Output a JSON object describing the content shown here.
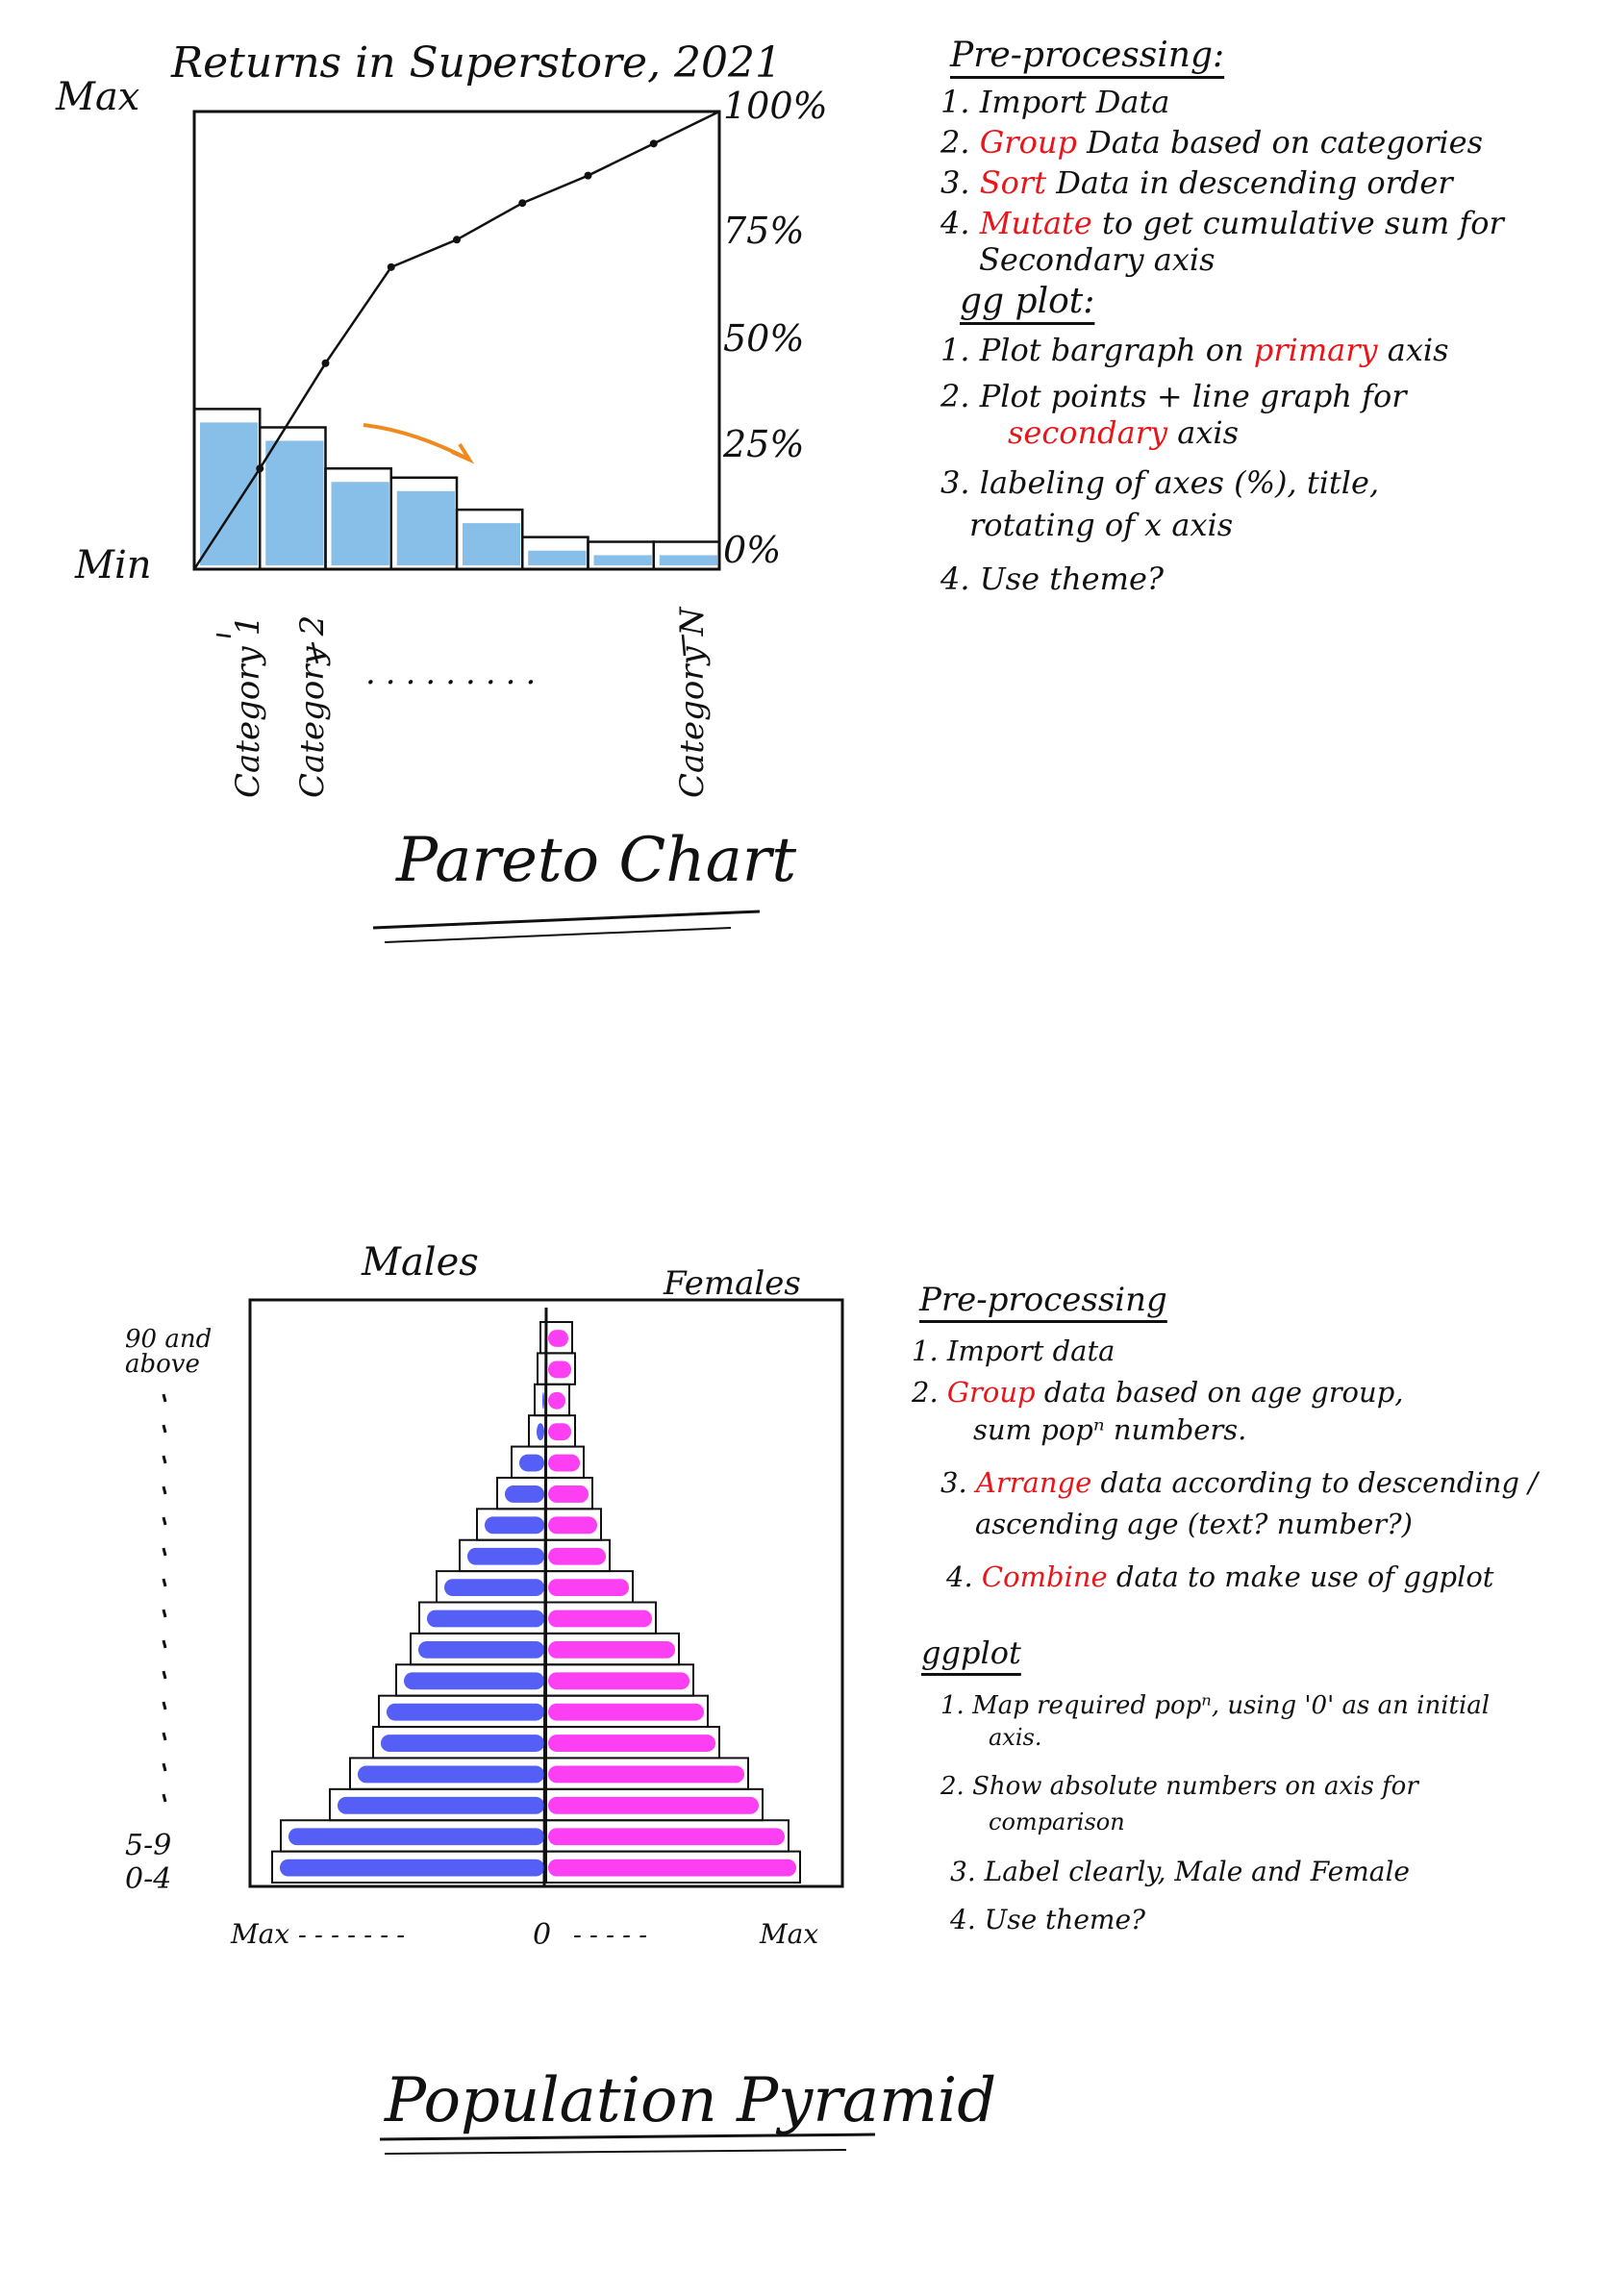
{
  "pareto": {
    "title": "Returns in Superstore, 2021",
    "y_max_label": "Max",
    "y_min_label": "Min",
    "pct_labels": [
      "100%",
      "75%",
      "50%",
      "25%",
      "0%"
    ],
    "category_labels": [
      "Category 1",
      "Category 2",
      "Category N"
    ],
    "ellipsis": "·········",
    "chart_name": "Pareto Chart"
  },
  "pareto_notes": {
    "preprocessing_heading": "Pre-processing:",
    "preprocessing": [
      {
        "num": "1.",
        "pre": "",
        "kw": "",
        "post": "Import Data"
      },
      {
        "num": "2.",
        "pre": "",
        "kw": "Group",
        "post": " Data based on categories"
      },
      {
        "num": "3.",
        "pre": "",
        "kw": "Sort",
        "post": " Data in descending order"
      },
      {
        "num": "4.",
        "pre": "",
        "kw": "Mutate",
        "post": " to get cumulative sum for"
      }
    ],
    "preprocessing_cont": "Secondary axis",
    "ggplot_heading": "gg plot:",
    "ggplot": [
      {
        "num": "1.",
        "pre": "Plot bargraph on ",
        "kw": "primary",
        "post": " axis"
      },
      {
        "num": "2.",
        "pre": "Plot points + line graph for",
        "kw": "",
        "post": ""
      }
    ],
    "ggplot_2_cont_kw": "secondary",
    "ggplot_2_cont_post": " axis",
    "ggplot_3": "3. labeling of axes (%), title,",
    "ggplot_3_cont": "rotating of x axis",
    "ggplot_4": "4. Use theme?"
  },
  "pyramid": {
    "male_label": "Males",
    "female_label": "Females",
    "top_age_label": "90 and above",
    "age_labels_bottom": [
      "5-9",
      "0-4"
    ],
    "x_labels": [
      "Max",
      "0",
      "Max"
    ],
    "x_dots_left": "- - - - - - -",
    "x_dots_right": "- - - - -",
    "chart_name": "Population Pyramid"
  },
  "pyramid_notes": {
    "preprocessing_heading": "Pre-processing",
    "items": [
      {
        "num": "1.",
        "kw": "",
        "post": "Import data"
      },
      {
        "num": "2.",
        "kw": "Group",
        "post": " data based on age group,"
      },
      {
        "num": "",
        "kw": "",
        "post": "sum popⁿ numbers."
      },
      {
        "num": "3.",
        "kw": "Arrange",
        "post": " data according to descending /"
      },
      {
        "num": "",
        "kw": "",
        "post": "ascending age (text? number?)"
      },
      {
        "num": "4.",
        "kw": "Combine",
        "post": " data to make use of ggplot"
      }
    ],
    "ggplot_heading": "ggplot",
    "ggplot": [
      "1. Map required popⁿ, using '0' as an initial",
      "axis.",
      "2. Show absolute numbers on axis for",
      "comparison",
      "3. Label clearly, Male and Female",
      "4. Use theme?"
    ]
  },
  "chart_data": [
    {
      "type": "bar",
      "title": "Returns in Superstore, 2021",
      "categories": [
        "Category 1",
        "Category 2",
        "",
        "",
        "",
        "",
        "",
        "Category N"
      ],
      "values": [
        0.35,
        0.31,
        0.22,
        0.2,
        0.13,
        0.07,
        0.06,
        0.06
      ],
      "cumulative_pct": [
        0,
        22,
        45,
        66,
        72,
        80,
        86,
        93,
        100
      ],
      "y_secondary_ticks": [
        "0%",
        "25%",
        "50%",
        "75%",
        "100%"
      ],
      "colors": {
        "bar": "#7ab8e6",
        "line": "#111111",
        "arrow": "#f08a1e"
      }
    },
    {
      "type": "bar",
      "title": "",
      "age_groups": 18,
      "males": [
        0.95,
        0.92,
        0.75,
        0.68,
        0.6,
        0.58,
        0.52,
        0.47,
        0.44,
        0.38,
        0.3,
        0.24,
        0.17,
        0.12,
        0.06,
        0.04,
        0.03,
        0.02
      ],
      "females": [
        0.88,
        0.84,
        0.75,
        0.7,
        0.6,
        0.56,
        0.51,
        0.46,
        0.38,
        0.3,
        0.22,
        0.19,
        0.16,
        0.13,
        0.1,
        0.08,
        0.1,
        0.09
      ],
      "colors": {
        "male": "#2a37f2",
        "female": "#fb0ff0"
      }
    }
  ]
}
